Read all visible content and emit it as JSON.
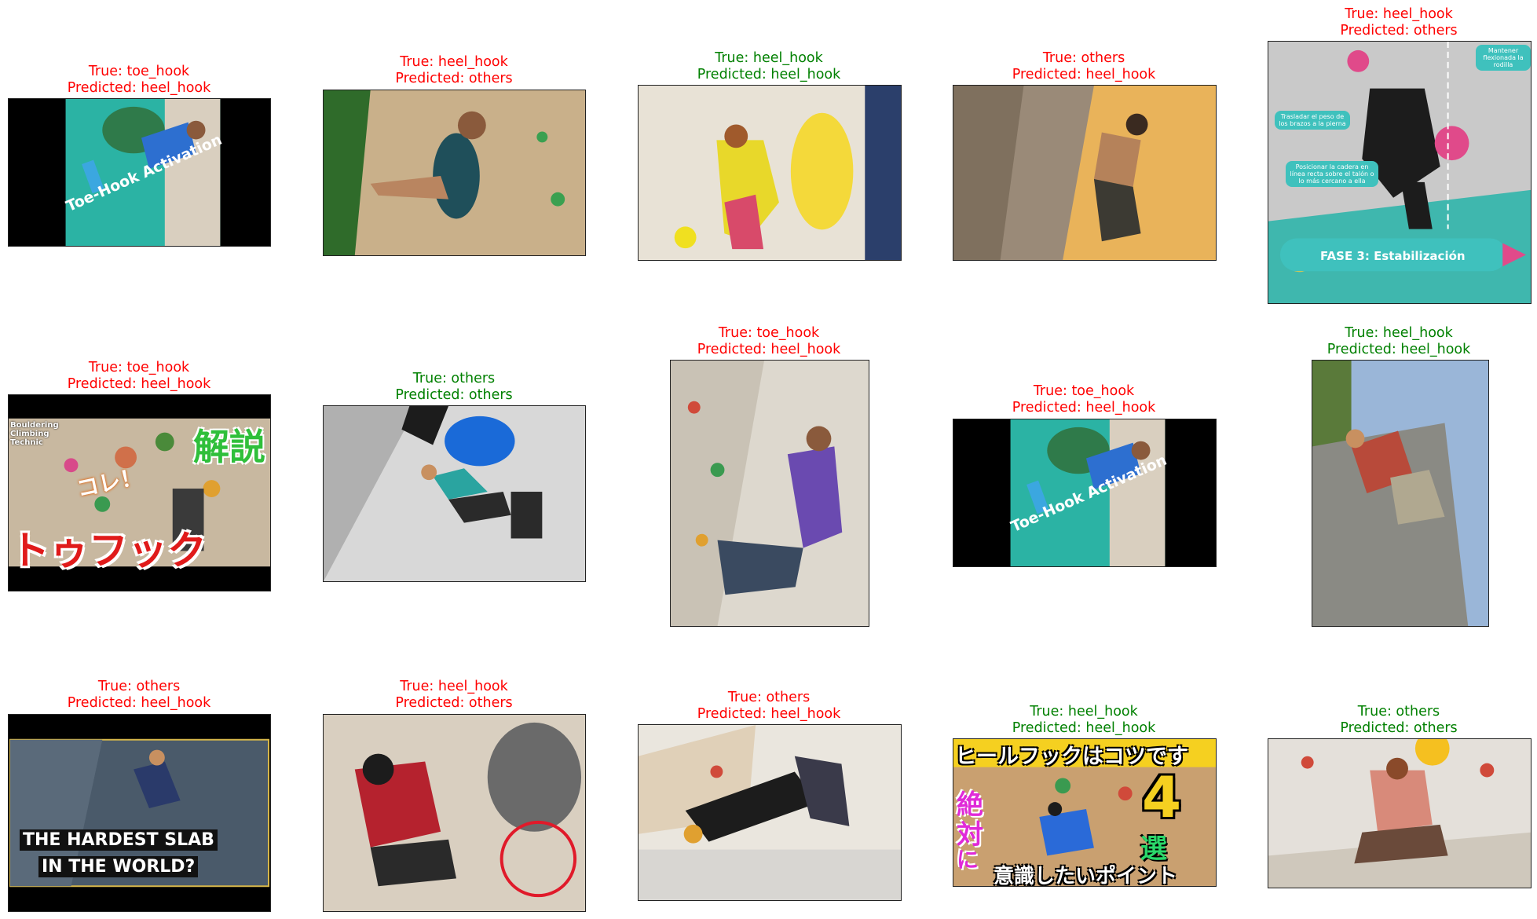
{
  "panels": [
    {
      "true_label": "True: toe_hook",
      "pred_label": "Predicted: heel_hook",
      "correct": false,
      "overlay_texts": [
        "Toe-Hook Activation"
      ]
    },
    {
      "true_label": "True: heel_hook",
      "pred_label": "Predicted: others",
      "correct": false,
      "overlay_texts": []
    },
    {
      "true_label": "True: heel_hook",
      "pred_label": "Predicted: heel_hook",
      "correct": true,
      "overlay_texts": []
    },
    {
      "true_label": "True: others",
      "pred_label": "Predicted: heel_hook",
      "correct": false,
      "overlay_texts": []
    },
    {
      "true_label": "True: heel_hook",
      "pred_label": "Predicted: others",
      "correct": false,
      "overlay_texts": [
        "Mantener flexionada la rodilla",
        "Trasladar el peso de los brazos a la pierna",
        "Posicionar la cadera en línea recta sobre el talón o lo más cercano a ella",
        "FASE 3: Estabilización"
      ]
    },
    {
      "true_label": "True: toe_hook",
      "pred_label": "Predicted: heel_hook",
      "correct": false,
      "overlay_texts": [
        "Bouldering Climbing Technic",
        "解説",
        "コレ！",
        "トゥフック"
      ]
    },
    {
      "true_label": "True: others",
      "pred_label": "Predicted: others",
      "correct": true,
      "overlay_texts": []
    },
    {
      "true_label": "True: toe_hook",
      "pred_label": "Predicted: heel_hook",
      "correct": false,
      "overlay_texts": []
    },
    {
      "true_label": "True: toe_hook",
      "pred_label": "Predicted: heel_hook",
      "correct": false,
      "overlay_texts": [
        "Toe-Hook Activation"
      ]
    },
    {
      "true_label": "True: heel_hook",
      "pred_label": "Predicted: heel_hook",
      "correct": true,
      "overlay_texts": []
    },
    {
      "true_label": "True: others",
      "pred_label": "Predicted: heel_hook",
      "correct": false,
      "overlay_texts": [
        "THE HARDEST SLAB",
        "IN THE WORLD?"
      ]
    },
    {
      "true_label": "True: heel_hook",
      "pred_label": "Predicted: others",
      "correct": false,
      "overlay_texts": []
    },
    {
      "true_label": "True: others",
      "pred_label": "Predicted: heel_hook",
      "correct": false,
      "overlay_texts": []
    },
    {
      "true_label": "True: heel_hook",
      "pred_label": "Predicted: heel_hook",
      "correct": true,
      "overlay_texts": [
        "ヒールフックはコツです",
        "絶",
        "対",
        "に",
        "4",
        "選",
        "意識したいポイント"
      ]
    },
    {
      "true_label": "True: others",
      "pred_label": "Predicted: others",
      "correct": true,
      "overlay_texts": []
    }
  ],
  "colors": {
    "correct": "#008000",
    "incorrect": "#ff0000"
  }
}
